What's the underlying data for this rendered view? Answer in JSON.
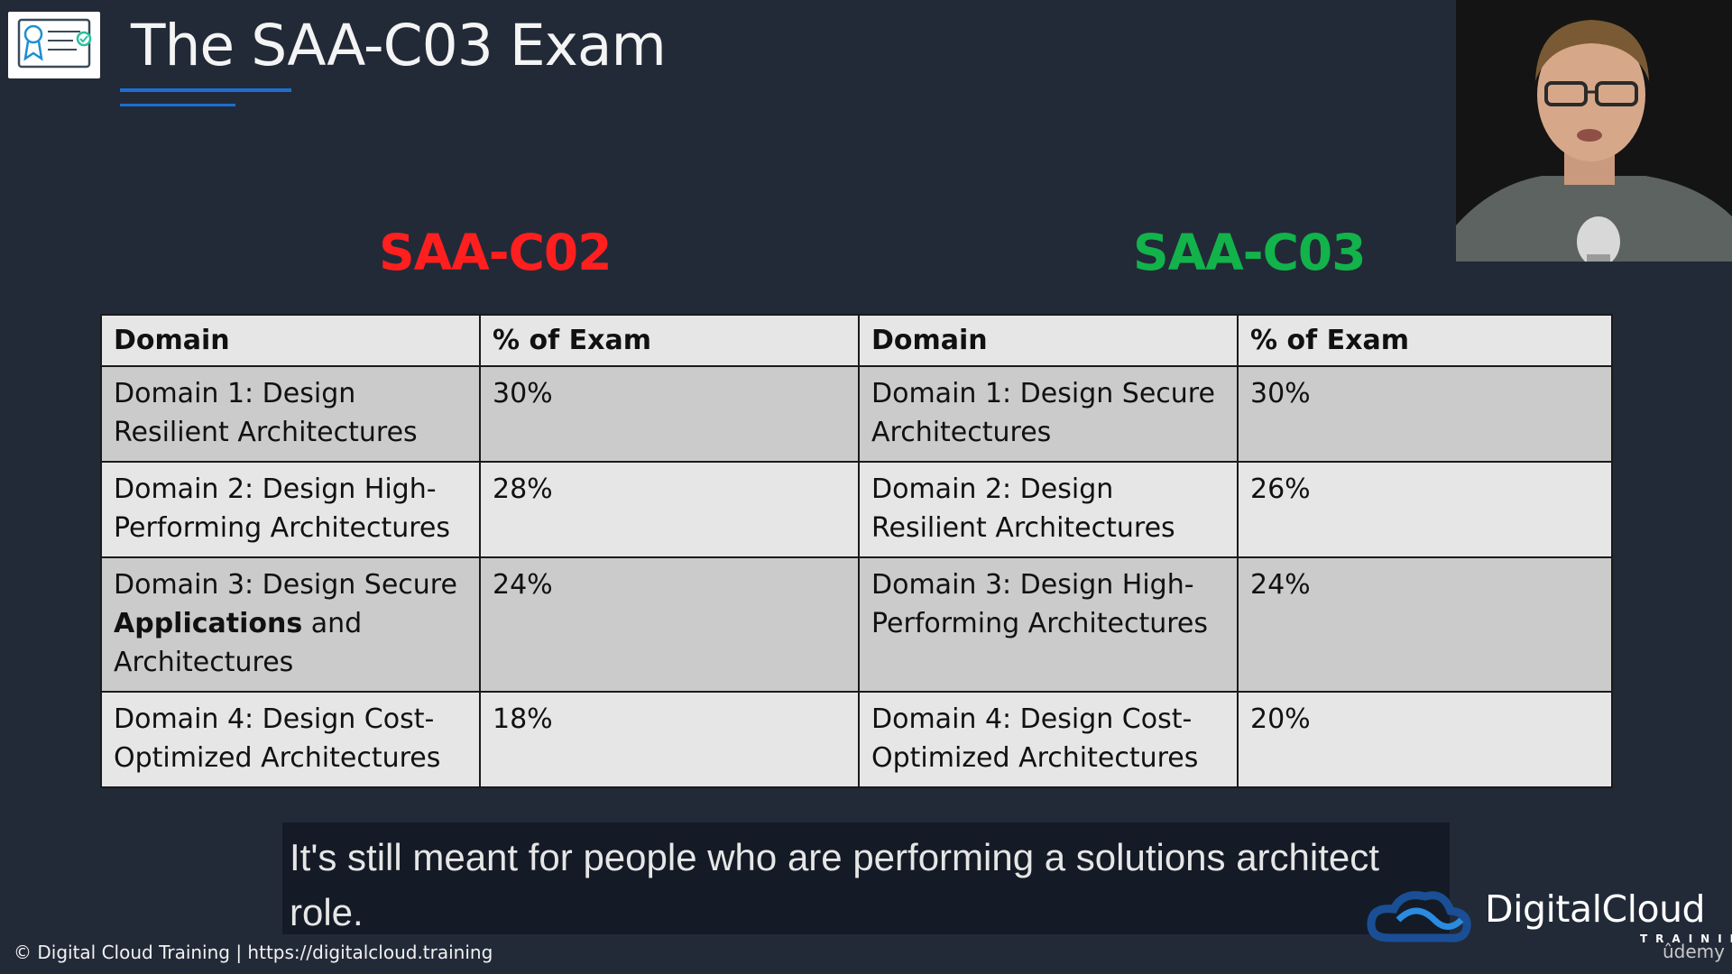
{
  "slide": {
    "title": "The SAA-C03 Exam",
    "heading_old": "SAA-C02",
    "heading_new": "SAA-C03",
    "colors": {
      "old": "#ff1f1f",
      "new": "#12b34a",
      "accent": "#1b6fd0"
    }
  },
  "table": {
    "headers": [
      "Domain",
      "% of Exam",
      "Domain",
      "% of Exam"
    ],
    "rows": [
      {
        "c02_domain": "Domain 1: Design Resilient Architectures",
        "c02_pct": "30%",
        "c03_domain": "Domain 1: Design Secure Architectures",
        "c03_pct": "30%"
      },
      {
        "c02_domain": "Domain 2: Design High-Performing Architectures",
        "c02_pct": "28%",
        "c03_domain": "Domain 2: Design Resilient Architectures",
        "c03_pct": "26%"
      },
      {
        "c02_domain_a": "Domain 3: Design Secure",
        "c02_domain_bold": "Applications",
        "c02_domain_b": "and Architectures",
        "c02_pct": "24%",
        "c03_domain": "Domain 3: Design High-Performing Architectures",
        "c03_pct": "24%"
      },
      {
        "c02_domain": "Domain 4: Design Cost-Optimized Architectures",
        "c02_pct": "18%",
        "c03_domain": "Domain 4: Design Cost-Optimized Architectures",
        "c03_pct": "20%"
      }
    ]
  },
  "caption": "It's still meant for people who are performing a solutions architect role.",
  "footer": "© Digital Cloud Training  | https://digitalcloud.training",
  "brand": {
    "name": "DigitalCloud",
    "sub": "TRAINING",
    "platform": "ûdemy"
  },
  "icons": [
    "certificate-icon",
    "digitalcloud-logo-icon"
  ]
}
